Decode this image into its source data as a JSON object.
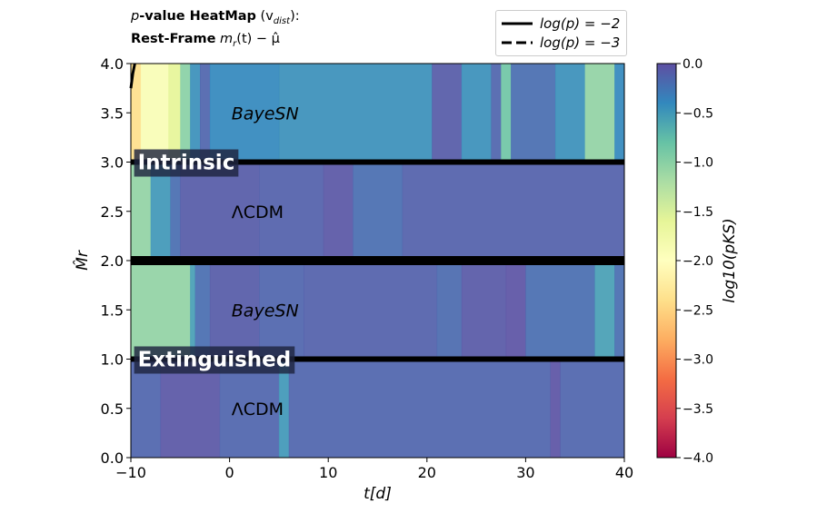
{
  "title": {
    "line1_prefix": "p",
    "line1_bold": "-value HeatMap",
    "line1_math": "(v",
    "line1_sub": "dist",
    "line1_end": "):",
    "line2_bold": "Rest-Frame",
    "line2_math": "m",
    "line2_sub": "r",
    "line2_rest": "(t) − μ̂"
  },
  "legend": [
    {
      "label": "log(p) = −2",
      "style": "solid"
    },
    {
      "label": "log(p) = −3",
      "style": "dashed"
    }
  ],
  "chart_data": {
    "type": "heatmap",
    "xlabel": "t[d]",
    "ylabel": "M̂r",
    "xlim": [
      -10,
      40
    ],
    "ylim": [
      0.0,
      4.0
    ],
    "xticks": [
      "−10",
      "0",
      "10",
      "20",
      "30",
      "40"
    ],
    "yticks": [
      "0.0",
      "0.5",
      "1.0",
      "1.5",
      "2.0",
      "2.5",
      "3.0",
      "3.5",
      "4.0"
    ],
    "colorbar": {
      "label": "log10(pKS)",
      "vmin": -4.0,
      "vmax": 0.0,
      "ticks": [
        "0.0",
        "−0.5",
        "−1.0",
        "−1.5",
        "−2.0",
        "−2.5",
        "−3.0",
        "−3.5",
        "−4.0"
      ],
      "colormap": "Spectral"
    },
    "rows": [
      {
        "name": "BayeSN",
        "group": "Intrinsic",
        "y": [
          3.0,
          4.0
        ],
        "segments": [
          [
            -10,
            -9,
            -2.4
          ],
          [
            -9,
            -6.2,
            -1.9
          ],
          [
            -6.2,
            -5.0,
            -1.6
          ],
          [
            -5.0,
            -4.0,
            -1.0
          ],
          [
            -4.0,
            -3.0,
            -0.45
          ],
          [
            -3.0,
            -2.0,
            -0.15
          ],
          [
            -2.0,
            5.0,
            -0.4
          ],
          [
            5.0,
            20.5,
            -0.45
          ],
          [
            20.5,
            23.5,
            -0.08
          ],
          [
            23.5,
            26.5,
            -0.45
          ],
          [
            26.5,
            27.5,
            -0.15
          ],
          [
            27.5,
            28.5,
            -0.85
          ],
          [
            28.5,
            33.0,
            -0.2
          ],
          [
            33.0,
            36.0,
            -0.45
          ],
          [
            36.0,
            39.0,
            -1.05
          ],
          [
            39.0,
            40.0,
            -0.4
          ]
        ]
      },
      {
        "name": "ΛCDM",
        "group": "Intrinsic",
        "y": [
          2.0,
          3.0
        ],
        "segments": [
          [
            -10,
            -8.0,
            -1.05
          ],
          [
            -8.0,
            -6.0,
            -0.5
          ],
          [
            -6.0,
            -5.0,
            -0.2
          ],
          [
            -5.0,
            3.0,
            -0.08
          ],
          [
            3.0,
            9.5,
            -0.12
          ],
          [
            9.5,
            12.5,
            -0.05
          ],
          [
            12.5,
            17.5,
            -0.2
          ],
          [
            17.5,
            40.0,
            -0.12
          ]
        ]
      },
      {
        "name": "BayeSN",
        "group": "Extinguished",
        "y": [
          1.0,
          2.0
        ],
        "segments": [
          [
            -10,
            -4.0,
            -1.05
          ],
          [
            -4.0,
            -3.5,
            -0.55
          ],
          [
            -3.5,
            -2.0,
            -0.2
          ],
          [
            -2.0,
            3.0,
            -0.08
          ],
          [
            3.0,
            7.5,
            -0.15
          ],
          [
            7.5,
            21.0,
            -0.12
          ],
          [
            21.0,
            23.5,
            -0.18
          ],
          [
            23.5,
            28.0,
            -0.06
          ],
          [
            28.0,
            30.0,
            -0.03
          ],
          [
            30.0,
            37.0,
            -0.2
          ],
          [
            37.0,
            39.0,
            -0.55
          ],
          [
            39.0,
            40.0,
            -0.2
          ]
        ]
      },
      {
        "name": "ΛCDM",
        "group": "Extinguished",
        "y": [
          0.0,
          1.0
        ],
        "segments": [
          [
            -10,
            -7.0,
            -0.15
          ],
          [
            -7.0,
            -1.0,
            -0.05
          ],
          [
            -1.0,
            5.0,
            -0.15
          ],
          [
            5.0,
            6.0,
            -0.5
          ],
          [
            6.0,
            32.5,
            -0.15
          ],
          [
            32.5,
            33.5,
            -0.03
          ],
          [
            33.5,
            40.0,
            -0.15
          ]
        ]
      }
    ],
    "row_labels": [
      {
        "text": "BayeSN",
        "italic": true,
        "x": 0.2,
        "y": 3.5
      },
      {
        "text": "ΛCDM",
        "italic": false,
        "x": 0.2,
        "y": 2.5
      },
      {
        "text": "BayeSN",
        "italic": true,
        "x": 0.2,
        "y": 1.5
      },
      {
        "text": "ΛCDM",
        "italic": false,
        "x": 0.2,
        "y": 0.5
      }
    ],
    "group_labels": [
      {
        "text": "Intrinsic",
        "x": -9.3,
        "y": 3.0
      },
      {
        "text": "Extinguished",
        "x": -9.3,
        "y": 1.0
      }
    ],
    "separators": [
      1.0,
      2.0,
      3.0
    ],
    "contour": {
      "level": -2,
      "style": "solid",
      "points": [
        [
          -10,
          3.75
        ],
        [
          -9.8,
          3.9
        ],
        [
          -9.6,
          4.0
        ]
      ]
    }
  },
  "colors": {
    "separator": "#000000",
    "label_box": "#1f2440",
    "spectral": [
      "#9e0142",
      "#d53e4f",
      "#f46d43",
      "#fdae61",
      "#fee08b",
      "#ffffbf",
      "#e6f598",
      "#abdda4",
      "#66c2a5",
      "#3288bd",
      "#5e4fa2"
    ]
  }
}
